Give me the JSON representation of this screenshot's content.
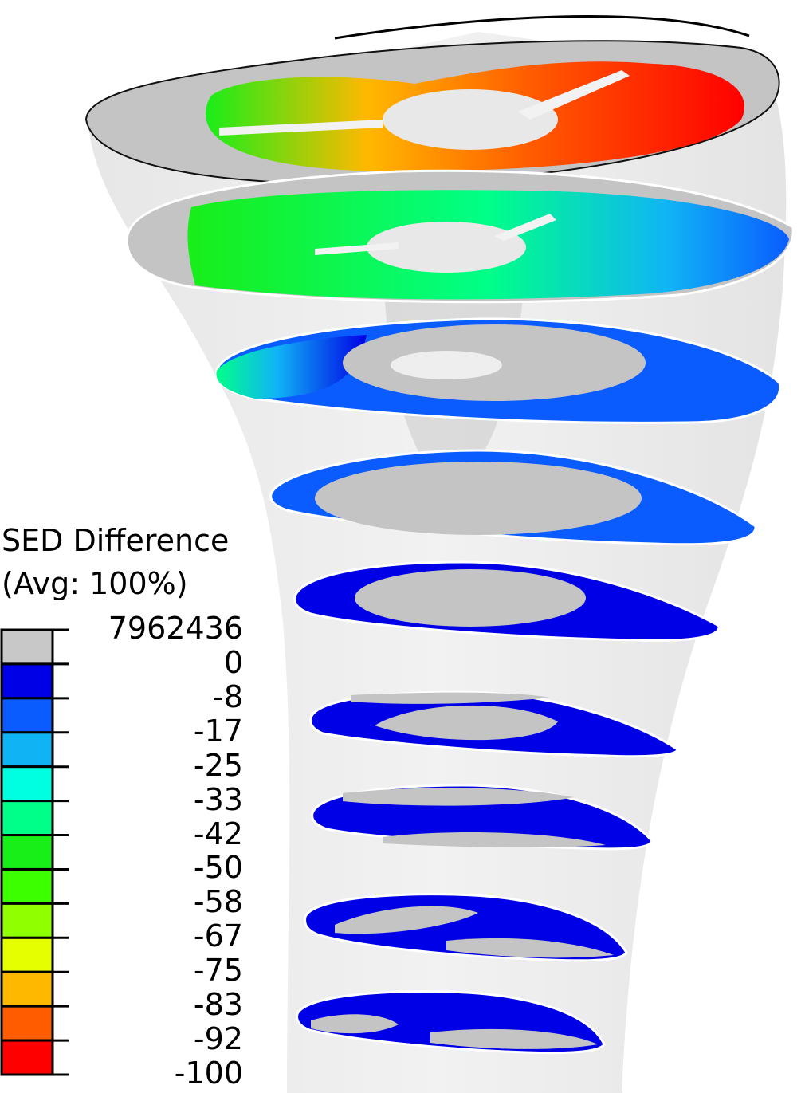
{
  "legend": {
    "title": "SED Difference",
    "subtitle": "(Avg: 100%)",
    "ticks": [
      "7962436",
      "0",
      "-8",
      "-17",
      "-25",
      "-33",
      "-42",
      "-50",
      "-58",
      "-67",
      "-75",
      "-83",
      "-92",
      "-100"
    ],
    "bands": [
      {
        "color": "#c8c8c8"
      },
      {
        "color": "#0000e6"
      },
      {
        "color": "#0a5cff"
      },
      {
        "color": "#10b4f5"
      },
      {
        "color": "#00ffe0"
      },
      {
        "color": "#00ff88"
      },
      {
        "color": "#18ee18"
      },
      {
        "color": "#3cff00"
      },
      {
        "color": "#90ff00"
      },
      {
        "color": "#e6ff00"
      },
      {
        "color": "#ffb800"
      },
      {
        "color": "#ff5c00"
      },
      {
        "color": "#ff0000"
      }
    ]
  },
  "figure": {
    "slice_count": 9
  }
}
